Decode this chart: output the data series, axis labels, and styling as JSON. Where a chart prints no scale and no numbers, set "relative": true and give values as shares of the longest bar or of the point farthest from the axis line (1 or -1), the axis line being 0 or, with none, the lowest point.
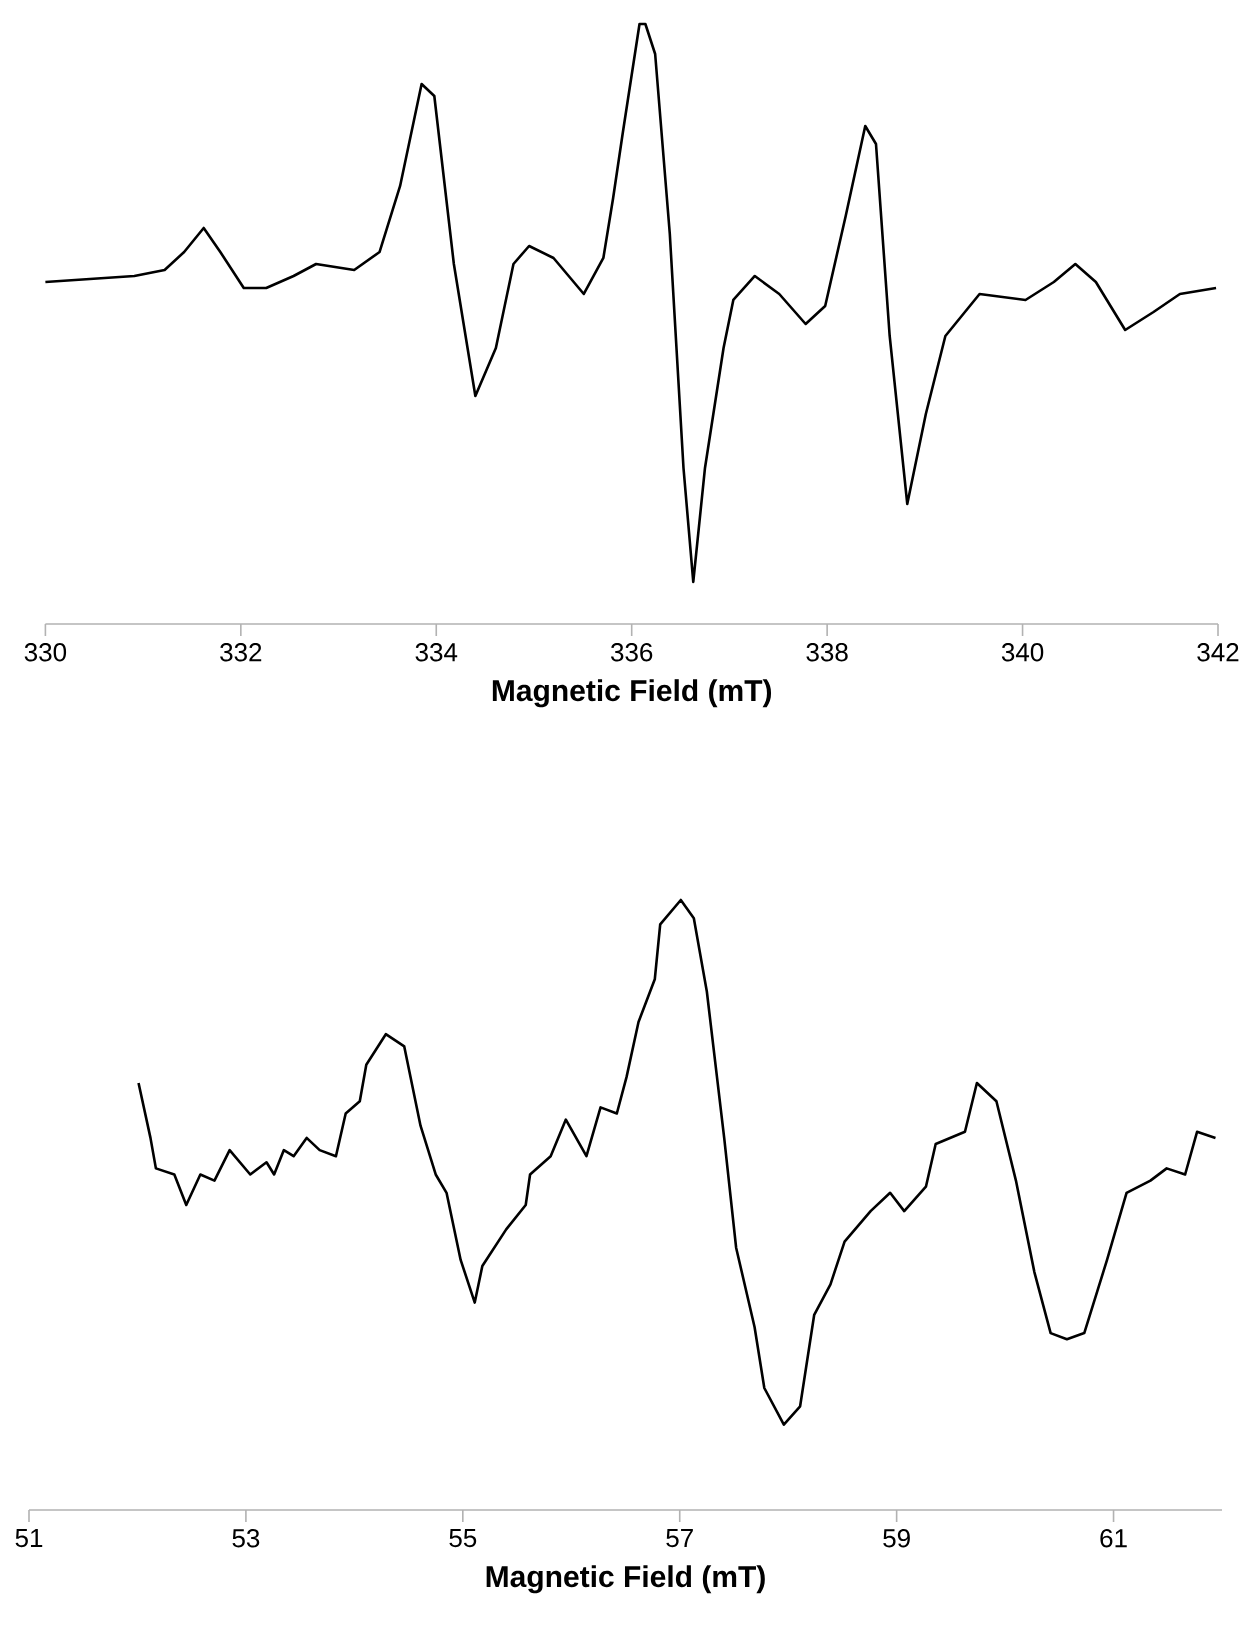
{
  "chart_data": [
    {
      "type": "line",
      "relative": true,
      "xlabel": "Magnetic Field (mT)",
      "xlim": [
        330,
        342
      ],
      "xticks": [
        330,
        332,
        334,
        336,
        338,
        340,
        342
      ],
      "color": "#000000",
      "x": [
        330.0,
        330.91,
        331.22,
        331.42,
        331.62,
        331.79,
        332.03,
        332.26,
        332.54,
        332.77,
        333.16,
        333.42,
        333.63,
        333.85,
        333.98,
        334.18,
        334.4,
        334.61,
        334.79,
        334.95,
        335.2,
        335.51,
        335.71,
        335.81,
        335.91,
        336.08,
        336.14,
        336.24,
        336.39,
        336.53,
        336.63,
        336.75,
        336.94,
        337.04,
        337.26,
        337.51,
        337.78,
        337.98,
        338.19,
        338.39,
        338.5,
        338.64,
        338.82,
        339.01,
        339.21,
        339.56,
        340.03,
        340.32,
        340.54,
        340.75,
        341.05,
        341.34,
        341.61,
        341.98
      ],
      "values": [
        0.57,
        0.58,
        0.59,
        0.62,
        0.66,
        0.62,
        0.56,
        0.56,
        0.58,
        0.6,
        0.59,
        0.62,
        0.73,
        0.9,
        0.88,
        0.6,
        0.38,
        0.46,
        0.6,
        0.63,
        0.61,
        0.55,
        0.61,
        0.71,
        0.82,
        1.0,
        1.0,
        0.95,
        0.65,
        0.26,
        0.07,
        0.26,
        0.46,
        0.54,
        0.58,
        0.55,
        0.5,
        0.53,
        0.68,
        0.83,
        0.8,
        0.48,
        0.2,
        0.35,
        0.48,
        0.55,
        0.54,
        0.57,
        0.6,
        0.57,
        0.49,
        0.52,
        0.55,
        0.56
      ]
    },
    {
      "type": "line",
      "relative": true,
      "xlabel": "Magnetic Field (mT)",
      "xlim": [
        51,
        62
      ],
      "xticks": [
        51,
        53,
        55,
        57,
        59,
        61
      ],
      "color": "#000000",
      "x": [
        52.01,
        52.12,
        52.17,
        52.34,
        52.45,
        52.58,
        52.71,
        52.85,
        53.04,
        53.19,
        53.26,
        53.35,
        53.44,
        53.56,
        53.68,
        53.83,
        53.92,
        54.05,
        54.11,
        54.29,
        54.46,
        54.61,
        54.75,
        54.85,
        54.98,
        55.11,
        55.18,
        55.4,
        55.58,
        55.62,
        55.81,
        55.95,
        56.14,
        56.27,
        56.42,
        56.51,
        56.62,
        56.77,
        56.82,
        57.01,
        57.13,
        57.25,
        57.41,
        57.52,
        57.69,
        57.78,
        57.96,
        58.11,
        58.24,
        58.39,
        58.52,
        58.76,
        58.94,
        59.07,
        59.27,
        59.36,
        59.63,
        59.74,
        59.92,
        60.1,
        60.27,
        60.42,
        60.57,
        60.73,
        60.94,
        61.12,
        61.34,
        61.49,
        61.66,
        61.77,
        61.94
      ],
      "values": [
        0.7,
        0.61,
        0.56,
        0.55,
        0.5,
        0.55,
        0.54,
        0.59,
        0.55,
        0.57,
        0.55,
        0.59,
        0.58,
        0.61,
        0.59,
        0.58,
        0.65,
        0.67,
        0.73,
        0.78,
        0.76,
        0.63,
        0.55,
        0.52,
        0.41,
        0.34,
        0.4,
        0.46,
        0.5,
        0.55,
        0.58,
        0.64,
        0.58,
        0.66,
        0.65,
        0.71,
        0.8,
        0.87,
        0.96,
        1.0,
        0.97,
        0.85,
        0.61,
        0.43,
        0.3,
        0.2,
        0.14,
        0.17,
        0.32,
        0.37,
        0.44,
        0.49,
        0.52,
        0.49,
        0.53,
        0.6,
        0.62,
        0.7,
        0.67,
        0.54,
        0.39,
        0.29,
        0.28,
        0.29,
        0.41,
        0.52,
        0.54,
        0.56,
        0.55,
        0.62,
        0.61
      ]
    }
  ]
}
